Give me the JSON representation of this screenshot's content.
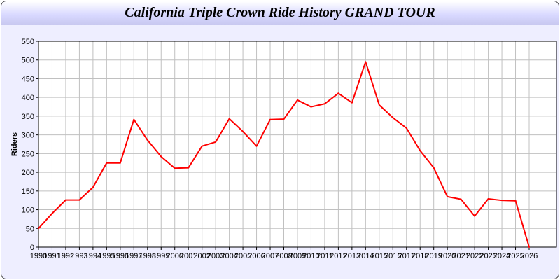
{
  "chart_data": {
    "type": "line",
    "title": "California Triple Crown Ride History GRAND TOUR",
    "xlabel": "",
    "ylabel": "Riders",
    "ylim": [
      0,
      550
    ],
    "yticks": [
      0,
      50,
      100,
      150,
      200,
      250,
      300,
      350,
      400,
      450,
      500,
      550
    ],
    "grid": true,
    "x": [
      "1990",
      "1991",
      "1992",
      "1993",
      "1994",
      "1995",
      "1996",
      "1997",
      "1998",
      "1999",
      "2000",
      "2001",
      "2002",
      "2003",
      "2004",
      "2005",
      "2006",
      "2007",
      "2008",
      "2009",
      "2010",
      "2011",
      "2012",
      "2013",
      "2014",
      "2015",
      "2016",
      "2017",
      "2018",
      "2019",
      "2020",
      "2021",
      "2022",
      "2023",
      "2024",
      "2025",
      "2026"
    ],
    "series": [
      {
        "color": "#ff0000",
        "values": [
          50,
          90,
          126,
          126,
          160,
          225,
          225,
          341,
          286,
          242,
          211,
          212,
          270,
          281,
          343,
          309,
          270,
          341,
          342,
          393,
          375,
          383,
          411,
          386,
          495,
          380,
          346,
          318,
          258,
          212,
          135,
          128,
          83,
          129,
          125,
          124,
          0
        ]
      }
    ]
  }
}
